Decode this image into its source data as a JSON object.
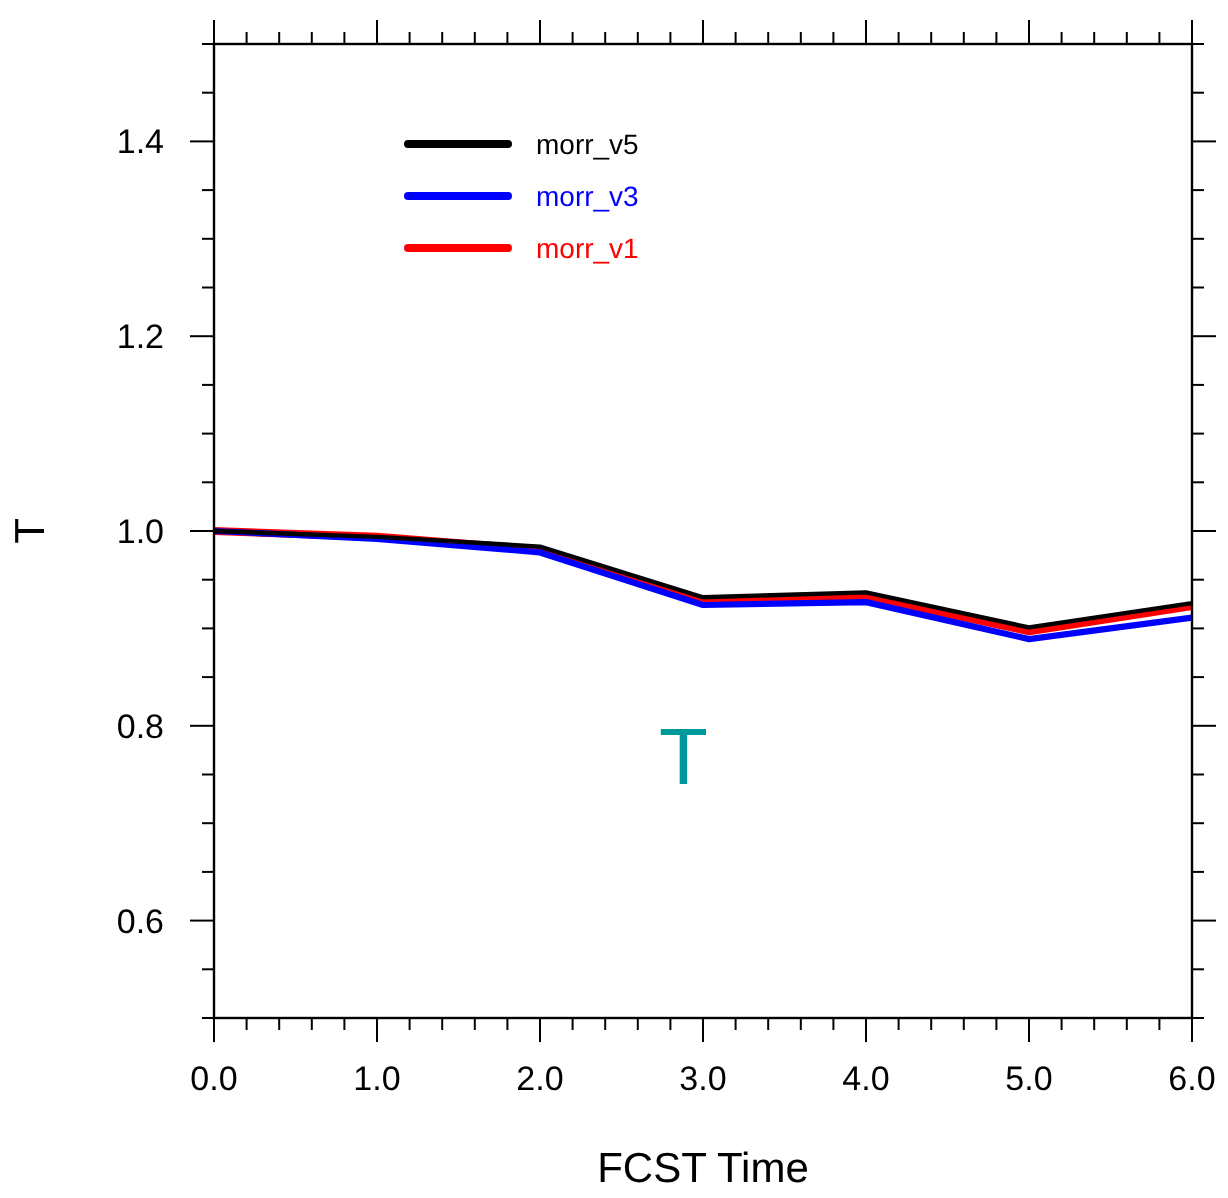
{
  "chart_data": {
    "type": "line",
    "xlabel": "FCST Time",
    "ylabel": "T",
    "annotations": [
      "T"
    ],
    "x": [
      0,
      1,
      2,
      3,
      4,
      5,
      6
    ],
    "series": [
      {
        "name": "morr_v5",
        "color": "#000000",
        "values": [
          1.0,
          0.994,
          0.984,
          0.932,
          0.937,
          0.901,
          0.926
        ]
      },
      {
        "name": "morr_v3",
        "color": "#0000ff",
        "values": [
          1.0,
          0.992,
          0.978,
          0.924,
          0.927,
          0.889,
          0.911
        ]
      },
      {
        "name": "morr_v1",
        "color": "#ff0000",
        "values": [
          1.0,
          0.994,
          0.981,
          0.928,
          0.933,
          0.897,
          0.923
        ]
      }
    ],
    "xlim": [
      0,
      6
    ],
    "ylim": [
      0.5,
      1.5
    ],
    "xticks": [
      {
        "value": 0,
        "label": "0.0"
      },
      {
        "value": 0.2,
        "label": null
      },
      {
        "value": 0.4,
        "label": null
      },
      {
        "value": 0.6,
        "label": null
      },
      {
        "value": 0.8,
        "label": null
      },
      {
        "value": 1,
        "label": "1.0"
      },
      {
        "value": 1.2,
        "label": null
      },
      {
        "value": 1.4,
        "label": null
      },
      {
        "value": 1.6,
        "label": null
      },
      {
        "value": 1.8,
        "label": null
      },
      {
        "value": 2,
        "label": "2.0"
      },
      {
        "value": 2.2,
        "label": null
      },
      {
        "value": 2.4,
        "label": null
      },
      {
        "value": 2.6,
        "label": null
      },
      {
        "value": 2.8,
        "label": null
      },
      {
        "value": 3,
        "label": "3.0"
      },
      {
        "value": 3.2,
        "label": null
      },
      {
        "value": 3.4,
        "label": null
      },
      {
        "value": 3.6,
        "label": null
      },
      {
        "value": 3.8,
        "label": null
      },
      {
        "value": 4,
        "label": "4.0"
      },
      {
        "value": 4.2,
        "label": null
      },
      {
        "value": 4.4,
        "label": null
      },
      {
        "value": 4.6,
        "label": null
      },
      {
        "value": 4.8,
        "label": null
      },
      {
        "value": 5,
        "label": "5.0"
      },
      {
        "value": 5.2,
        "label": null
      },
      {
        "value": 5.4,
        "label": null
      },
      {
        "value": 5.6,
        "label": null
      },
      {
        "value": 5.8,
        "label": null
      },
      {
        "value": 6,
        "label": "6.0"
      }
    ],
    "yticks": [
      {
        "value": 0.5,
        "label": null
      },
      {
        "value": 0.55,
        "label": null
      },
      {
        "value": 0.6,
        "label": "0.6"
      },
      {
        "value": 0.65,
        "label": null
      },
      {
        "value": 0.7,
        "label": null
      },
      {
        "value": 0.75,
        "label": null
      },
      {
        "value": 0.8,
        "label": "0.8"
      },
      {
        "value": 0.85,
        "label": null
      },
      {
        "value": 0.9,
        "label": null
      },
      {
        "value": 0.95,
        "label": null
      },
      {
        "value": 1.0,
        "label": "1.0"
      },
      {
        "value": 1.05,
        "label": null
      },
      {
        "value": 1.1,
        "label": null
      },
      {
        "value": 1.15,
        "label": null
      },
      {
        "value": 1.2,
        "label": "1.2"
      },
      {
        "value": 1.25,
        "label": null
      },
      {
        "value": 1.3,
        "label": null
      },
      {
        "value": 1.35,
        "label": null
      },
      {
        "value": 1.4,
        "label": "1.4"
      },
      {
        "value": 1.45,
        "label": null
      },
      {
        "value": 1.5,
        "label": null
      }
    ],
    "legend": "top left",
    "marker": "none",
    "line_style": "solid",
    "grid": false
  }
}
